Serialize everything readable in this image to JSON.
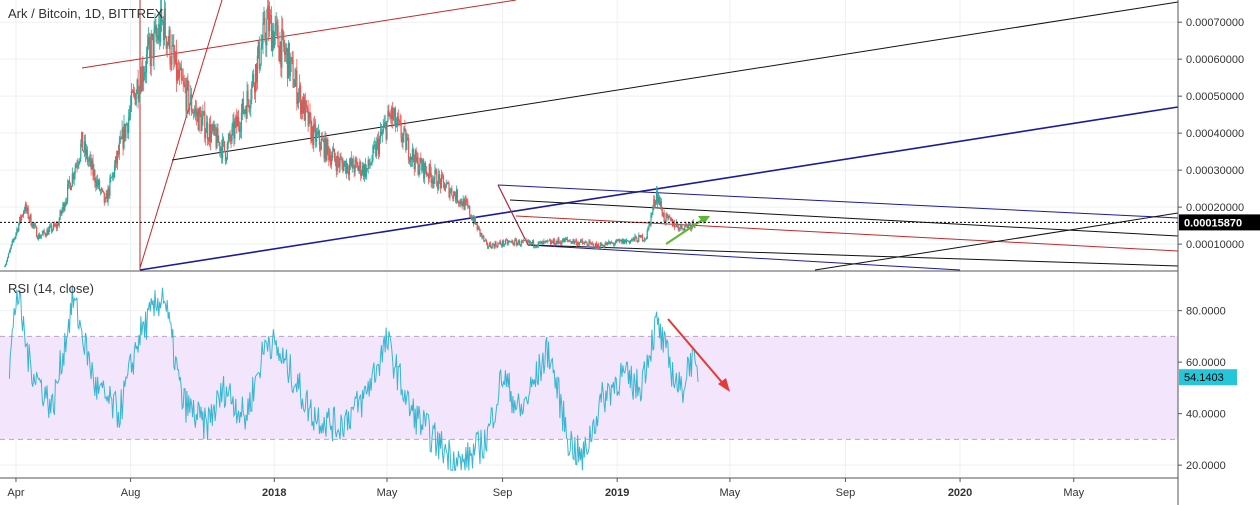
{
  "header": {
    "symbol_title": "Ark / Bitcoin, 1D, BITTREX"
  },
  "rsi_panel": {
    "title": "RSI (14, close)",
    "current_value_label": "54.1403"
  },
  "colors": {
    "bull": "#26a69a",
    "bear": "#ef5350",
    "rsi_line": "#38b6d1",
    "rsi_band_fill": "#f3e6fc",
    "price_tag_bg": "#000000",
    "rsi_tag_bg": "#26c6da",
    "drawing_red": "#c62828",
    "drawing_blue": "#1a1a9c",
    "drawing_black": "#111111",
    "drawing_green": "#5cb82e",
    "arrow_red": "#e53935"
  },
  "chart_data": [
    {
      "type": "candlestick",
      "title": "Ark / Bitcoin, 1D, BITTREX",
      "x_tick_labels": [
        "Apr",
        "Aug",
        "2018",
        "May",
        "Sep",
        "2019",
        "May",
        "Sep",
        "2020",
        "May"
      ],
      "y_tick_labels": [
        "0.00070000",
        "0.00060000",
        "0.00050000",
        "0.00040000",
        "0.00030000",
        "0.00020000",
        "0.00010000"
      ],
      "y_ticks": [
        0.0007,
        0.0006,
        0.0005,
        0.0004,
        0.0003,
        0.0002,
        0.0001
      ],
      "ylim": [
        3e-05,
        0.00076
      ],
      "xlim": [
        "2017-03-15",
        "2020-08-20"
      ],
      "last_price": 0.0001587,
      "last_price_label": "0.00015870",
      "price_keypoints": [
        [
          "2017-03-20",
          4e-05
        ],
        [
          "2017-04-10",
          0.0002
        ],
        [
          "2017-04-25",
          0.00012
        ],
        [
          "2017-05-15",
          0.00015
        ],
        [
          "2017-06-10",
          0.00037
        ],
        [
          "2017-07-05",
          0.00021
        ],
        [
          "2017-08-10",
          0.00055
        ],
        [
          "2017-09-05",
          0.0007
        ],
        [
          "2017-09-20",
          0.00055
        ],
        [
          "2017-10-10",
          0.00045
        ],
        [
          "2017-11-10",
          0.00035
        ],
        [
          "2017-12-05",
          0.0005
        ],
        [
          "2017-12-25",
          0.0007
        ],
        [
          "2018-01-15",
          0.0006
        ],
        [
          "2018-02-10",
          0.0004
        ],
        [
          "2018-03-10",
          0.00032
        ],
        [
          "2018-04-10",
          0.0003
        ],
        [
          "2018-05-05",
          0.00045
        ],
        [
          "2018-06-01",
          0.00032
        ],
        [
          "2018-07-10",
          0.00024
        ],
        [
          "2018-07-25",
          0.0002
        ],
        [
          "2018-08-15",
          9.5e-05
        ],
        [
          "2018-09-10",
          0.000105
        ],
        [
          "2018-10-10",
          0.0001
        ],
        [
          "2018-11-10",
          0.00011
        ],
        [
          "2018-12-10",
          9.5e-05
        ],
        [
          "2019-01-15",
          0.00011
        ],
        [
          "2019-02-01",
          0.00012
        ],
        [
          "2019-02-12",
          0.00024
        ],
        [
          "2019-02-20",
          0.00017
        ],
        [
          "2019-03-10",
          0.000145
        ],
        [
          "2019-03-25",
          0.0001587
        ]
      ]
    },
    {
      "type": "line",
      "title": "RSI (14, close)",
      "y_tick_labels": [
        "80.0000",
        "60.0000",
        "40.0000",
        "20.0000"
      ],
      "y_ticks": [
        80,
        60,
        40,
        20
      ],
      "ylim": [
        15,
        95
      ],
      "bands": [
        30,
        70
      ],
      "current": 54.1403,
      "rsi_keypoints": [
        [
          "2017-03-25",
          58
        ],
        [
          "2017-04-02",
          88
        ],
        [
          "2017-04-15",
          60
        ],
        [
          "2017-05-10",
          42
        ],
        [
          "2017-06-01",
          85
        ],
        [
          "2017-06-25",
          50
        ],
        [
          "2017-07-20",
          40
        ],
        [
          "2017-08-10",
          70
        ],
        [
          "2017-09-05",
          87
        ],
        [
          "2017-09-25",
          45
        ],
        [
          "2017-10-20",
          35
        ],
        [
          "2017-11-10",
          50
        ],
        [
          "2017-12-01",
          38
        ],
        [
          "2017-12-25",
          70
        ],
        [
          "2018-01-20",
          55
        ],
        [
          "2018-02-10",
          40
        ],
        [
          "2018-03-10",
          35
        ],
        [
          "2018-04-05",
          45
        ],
        [
          "2018-05-01",
          68
        ],
        [
          "2018-05-25",
          42
        ],
        [
          "2018-06-25",
          28
        ],
        [
          "2018-07-20",
          20
        ],
        [
          "2018-08-15",
          30
        ],
        [
          "2018-09-01",
          55
        ],
        [
          "2018-09-20",
          40
        ],
        [
          "2018-10-20",
          65
        ],
        [
          "2018-11-10",
          30
        ],
        [
          "2018-11-25",
          22
        ],
        [
          "2018-12-15",
          45
        ],
        [
          "2019-01-05",
          55
        ],
        [
          "2019-01-25",
          50
        ],
        [
          "2019-02-12",
          75
        ],
        [
          "2019-02-25",
          60
        ],
        [
          "2019-03-10",
          48
        ],
        [
          "2019-03-20",
          62
        ],
        [
          "2019-03-28",
          54
        ]
      ]
    }
  ]
}
